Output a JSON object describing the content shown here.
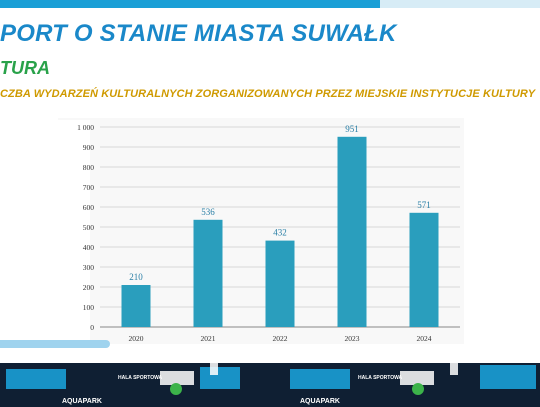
{
  "header": {
    "report_title": "PORT O STANIE MIASTA SUWAŁK",
    "section_title": "TURA",
    "chart_subtitle": "CZBA WYDARZEŃ KULTURALNYCH ZORGANIZOWANYCH PRZEZ MIEJSKIE INSTYTUCJE KULTURY"
  },
  "colors": {
    "title": "#1a88c9",
    "section": "#29a24a",
    "subtitle": "#cf9a00",
    "bar": "#2a9ebd",
    "stripe": "#1a9fd6"
  },
  "chart_data": {
    "type": "bar",
    "categories": [
      "2020",
      "2021",
      "2022",
      "2023",
      "2024"
    ],
    "values": [
      210,
      536,
      432,
      951,
      571
    ],
    "data_labels": [
      "210",
      "536",
      "432",
      "951",
      "571"
    ],
    "y_ticks": [
      "0",
      "100",
      "200",
      "300",
      "400",
      "500",
      "600",
      "700",
      "800",
      "900",
      "1 000"
    ],
    "ylim": [
      0,
      1000
    ],
    "grid": true,
    "legend": "none"
  },
  "skyline": {
    "labels": [
      "AQUAPARK",
      "HALA SPORTOWA",
      "AQUAPARK",
      "HALA SPORTOWA"
    ]
  }
}
